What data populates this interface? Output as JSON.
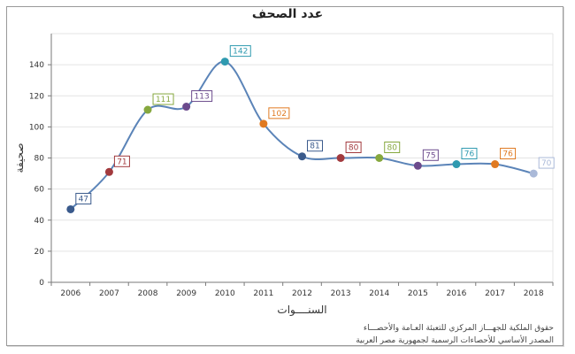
{
  "chart_data": {
    "type": "line",
    "title": "عدد الصحف",
    "xlabel": "السنــــوات",
    "ylabel": "صحيفة",
    "x": [
      "2006",
      "2007",
      "2008",
      "2009",
      "2010",
      "2011",
      "2012",
      "2013",
      "2014",
      "2015",
      "2016",
      "2017",
      "2018"
    ],
    "values": [
      47,
      71,
      111,
      113,
      142,
      102,
      81,
      80,
      80,
      75,
      76,
      76,
      70
    ],
    "point_colors": [
      "#3a5a8c",
      "#a23a3e",
      "#86a83e",
      "#6b4a8c",
      "#2f9ab0",
      "#e07a22",
      "#3a5a8c",
      "#a23a3e",
      "#86a83e",
      "#6b4a8c",
      "#2f9ab0",
      "#e07a22",
      "#aab9d8"
    ],
    "line_color": "#5b84b8",
    "ylim": [
      0,
      160
    ],
    "yticks": [
      0,
      20,
      40,
      60,
      80,
      100,
      120,
      140
    ],
    "grid": true,
    "smooth": true,
    "legend": "none"
  },
  "footer": {
    "line1": "حقوق الملكية للجهـــاز المركزي للتعبئة العـامة والأحصـــاء",
    "line2": "المصدر الأساسي للأحصاءات الرسمية لجمهورية مصر العربية"
  }
}
